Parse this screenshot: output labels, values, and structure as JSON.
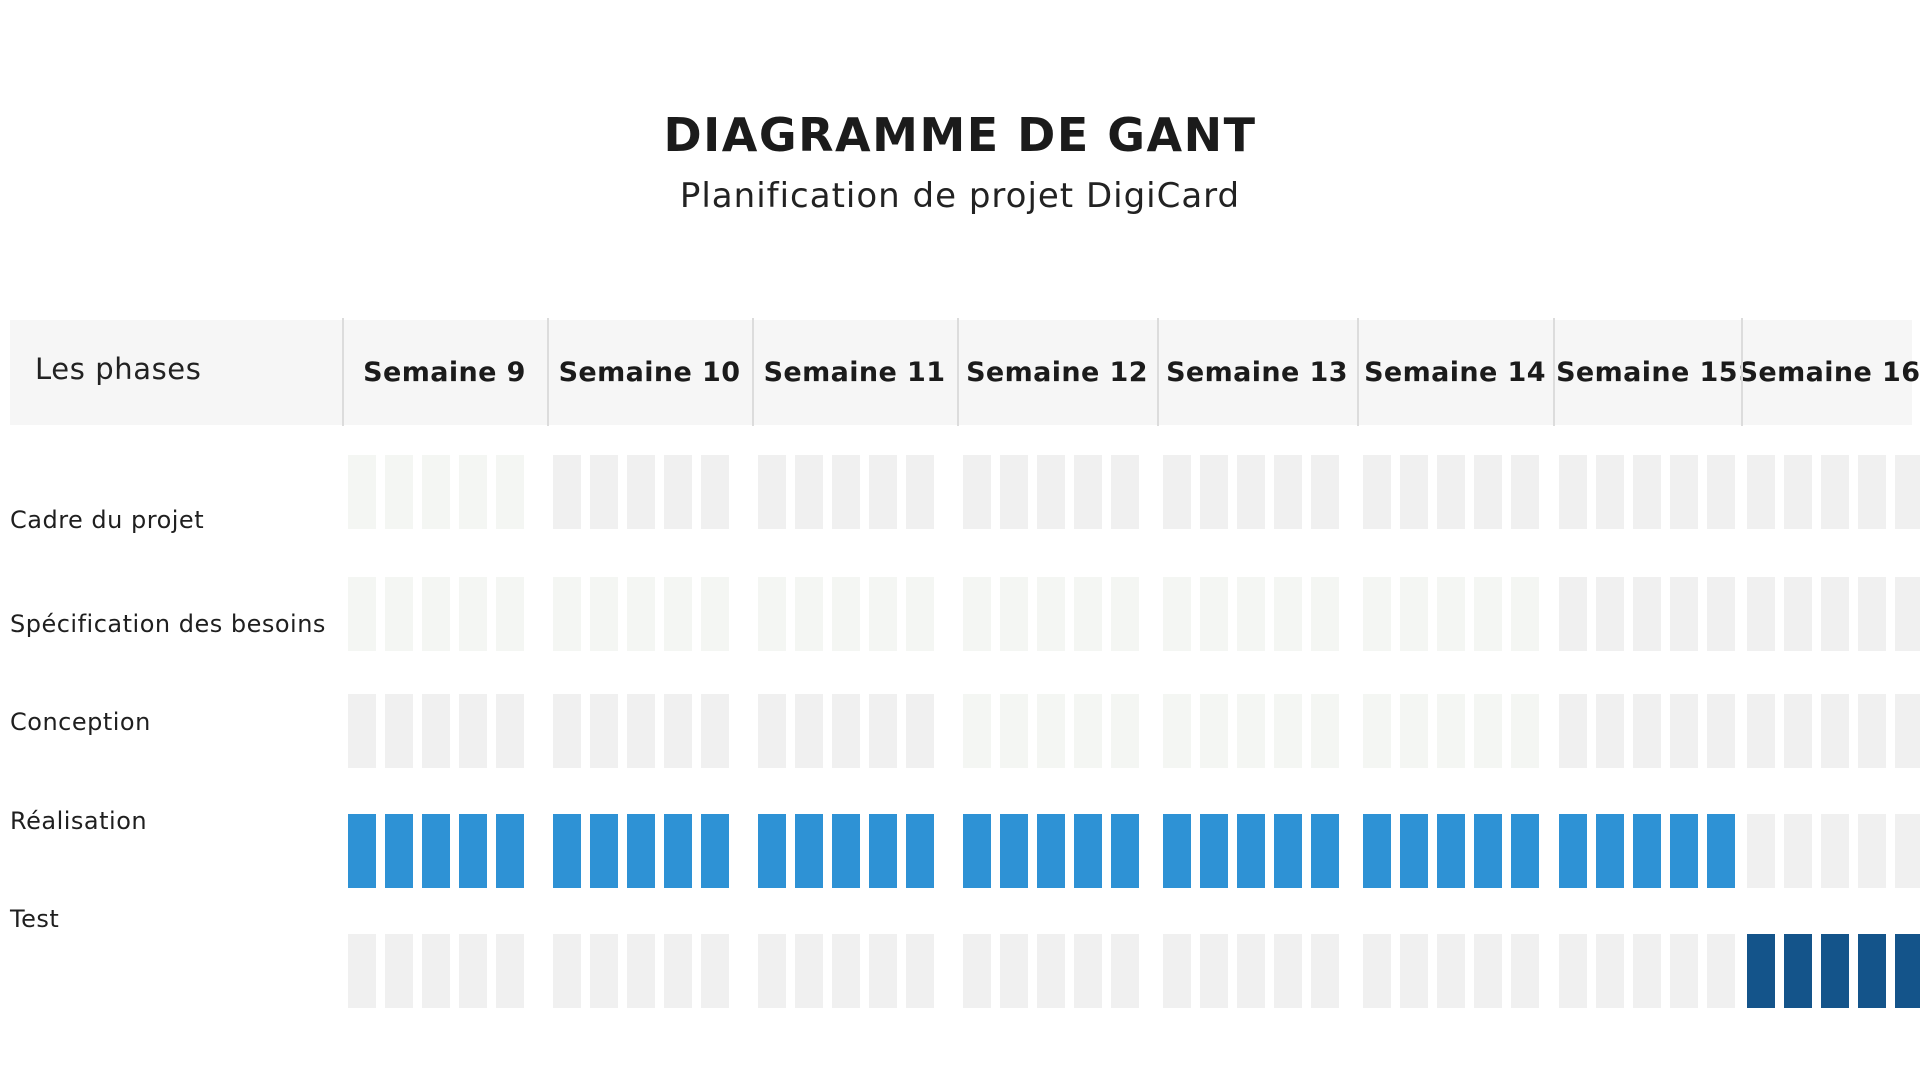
{
  "chart_data": {
    "type": "gantt",
    "title": "DIAGRAMME DE GANT",
    "subtitle": "Planification de projet DigiCard",
    "phase_header": "Les phases",
    "weeks": [
      "Semaine 9",
      "Semaine 10",
      "Semaine 11",
      "Semaine 12",
      "Semaine 13",
      "Semaine 14",
      "Semaine 15",
      "Semaine 16"
    ],
    "days_per_week": 5,
    "phases": [
      {
        "name": "Cadre du projet",
        "start_week": "Semaine 9",
        "end_week": "Semaine 9",
        "highlighted": false
      },
      {
        "name": "Spécification des besoins",
        "start_week": "Semaine 9",
        "end_week": "Semaine 14",
        "highlighted": false
      },
      {
        "name": "Conception",
        "start_week": "Semaine 12",
        "end_week": "Semaine 14",
        "highlighted": false
      },
      {
        "name": "Réalisation",
        "start_week": "Semaine 9",
        "end_week": "Semaine 15",
        "highlighted": true
      },
      {
        "name": "Test",
        "start_week": "Semaine 16",
        "end_week": "Semaine 16",
        "highlighted": true
      }
    ],
    "colors": {
      "Cadre du projet": "#f4f6f3",
      "Spécification des besoins": "#f4f6f3",
      "Conception": "#f4f6f3",
      "Réalisation": "#2e92d5",
      "Test": "#14548a",
      "inactive": "#f0f0f0"
    }
  }
}
